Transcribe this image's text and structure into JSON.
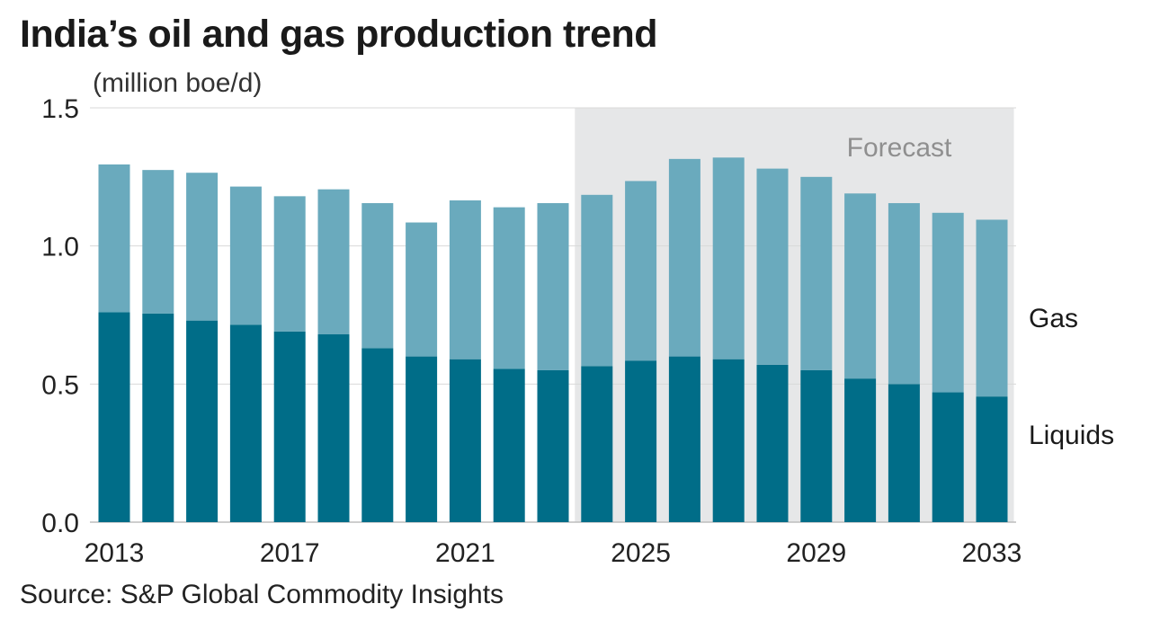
{
  "chart_data": {
    "type": "bar",
    "stacked": true,
    "title": "India’s oil and gas production trend",
    "subtitle": "(million boe/d)",
    "source": "Source: S&P Global Commodity Insights",
    "x": [
      2013,
      2014,
      2015,
      2016,
      2017,
      2018,
      2019,
      2020,
      2021,
      2022,
      2023,
      2024,
      2025,
      2026,
      2027,
      2028,
      2029,
      2030,
      2031,
      2032,
      2033
    ],
    "x_tick_labels": [
      "2013",
      "2017",
      "2021",
      "2025",
      "2029",
      "2033"
    ],
    "y_tick_labels": [
      "0.0",
      "0.5",
      "1.0",
      "1.5"
    ],
    "ylim": [
      0,
      1.5
    ],
    "grid": true,
    "series": [
      {
        "name": "Liquids",
        "color": "#006d88",
        "values": [
          0.76,
          0.755,
          0.73,
          0.715,
          0.69,
          0.68,
          0.63,
          0.6,
          0.59,
          0.555,
          0.55,
          0.565,
          0.585,
          0.6,
          0.59,
          0.57,
          0.55,
          0.52,
          0.5,
          0.47,
          0.455
        ]
      },
      {
        "name": "Gas",
        "color": "#6aaabd",
        "values": [
          0.535,
          0.52,
          0.535,
          0.5,
          0.49,
          0.525,
          0.525,
          0.485,
          0.575,
          0.585,
          0.605,
          0.62,
          0.65,
          0.715,
          0.73,
          0.71,
          0.7,
          0.67,
          0.655,
          0.65,
          0.64
        ]
      }
    ],
    "annotations": [
      {
        "text": "Forecast",
        "shaded_from": 2024,
        "shaded_to": 2033,
        "shade_color": "#e6e7e8"
      }
    ],
    "legend": {
      "placement": "right",
      "entries": [
        "Gas",
        "Liquids"
      ]
    }
  }
}
